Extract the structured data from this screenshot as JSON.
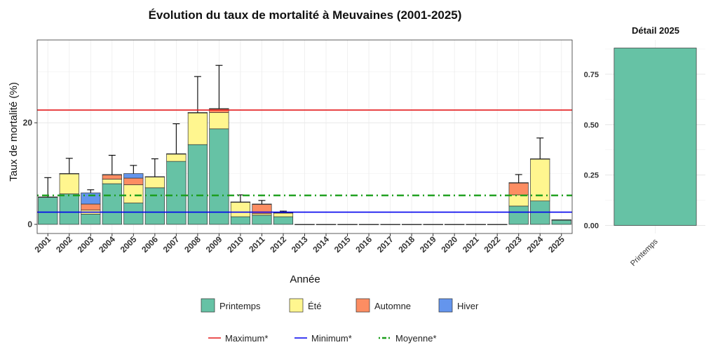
{
  "chart_data": [
    {
      "type": "bar",
      "stacked": true,
      "title": "Évolution du taux de mortalité à Meuvaines (2001-2025)",
      "xlabel": "Année",
      "ylabel": "Taux de mortalité (%)",
      "ylim": [
        -1.8,
        36.3
      ],
      "yticks": [
        0,
        20
      ],
      "grid": true,
      "categories": [
        "2001",
        "2002",
        "2003",
        "2004",
        "2005",
        "2006",
        "2007",
        "2008",
        "2009",
        "2010",
        "2011",
        "2012",
        "2013",
        "2014",
        "2015",
        "2016",
        "2017",
        "2018",
        "2019",
        "2020",
        "2021",
        "2022",
        "2023",
        "2024",
        "2025"
      ],
      "series": [
        {
          "name": "Printemps",
          "color": "#66C2A5",
          "values": [
            5.4,
            6.0,
            2.0,
            8.0,
            4.2,
            7.2,
            12.4,
            15.7,
            18.8,
            1.5,
            1.8,
            1.5,
            0,
            0,
            0,
            0,
            0,
            0,
            0,
            0,
            0,
            0,
            3.6,
            4.6,
            0.9
          ]
        },
        {
          "name": "Été",
          "color": "#FFF68F",
          "values": [
            0,
            4.0,
            0.8,
            0.9,
            3.6,
            2.2,
            1.5,
            6.3,
            3.2,
            2.9,
            0.3,
            0.8,
            0,
            0,
            0,
            0,
            0,
            0,
            0,
            0,
            0,
            0,
            2.2,
            8.3,
            0
          ]
        },
        {
          "name": "Automne",
          "color": "#FC8D62",
          "values": [
            0,
            0,
            1.2,
            0.9,
            1.3,
            0,
            0,
            0,
            0.8,
            0,
            1.9,
            0,
            0,
            0,
            0,
            0,
            0,
            0,
            0,
            0,
            0,
            0,
            2.4,
            0,
            0
          ]
        },
        {
          "name": "Hiver",
          "color": "#6495ED",
          "values": [
            0,
            0,
            2.2,
            0,
            0.9,
            0,
            0,
            0,
            0,
            0,
            0,
            0,
            0,
            0,
            0,
            0,
            0,
            0,
            0,
            0,
            0,
            0,
            0,
            0,
            0
          ]
        }
      ],
      "error_bars": {
        "color": "#000000",
        "upper": [
          9.2,
          13.0,
          6.8,
          13.6,
          11.6,
          12.9,
          19.8,
          29.1,
          31.3,
          5.8,
          4.7,
          2.6,
          0,
          0,
          0,
          0,
          0,
          0,
          0,
          0,
          0,
          0,
          9.8,
          17.0,
          0.95
        ]
      },
      "reference_lines": [
        {
          "name": "Maximum*",
          "value": 22.5,
          "color": "#E41A1C",
          "style": "solid"
        },
        {
          "name": "Minimum*",
          "value": 2.4,
          "color": "#0000EE",
          "style": "solid"
        },
        {
          "name": "Moyenne*",
          "value": 5.7,
          "color": "#1A9E1A",
          "style": "dotdash"
        }
      ]
    },
    {
      "type": "bar",
      "title": "Détail 2025",
      "categories": [
        "Printemps"
      ],
      "values": [
        0.88
      ],
      "color": "#66C2A5",
      "ylim": [
        -0.04,
        0.92
      ],
      "yticks": [
        0.0,
        0.25,
        0.5,
        0.75
      ],
      "grid": true
    }
  ],
  "legend": {
    "placement": "bottom",
    "fill_items": [
      {
        "label": "Printemps",
        "color": "#66C2A5"
      },
      {
        "label": "Été",
        "color": "#FFF68F"
      },
      {
        "label": "Automne",
        "color": "#FC8D62"
      },
      {
        "label": "Hiver",
        "color": "#6495ED"
      }
    ],
    "line_items": [
      {
        "label": "Maximum*",
        "color": "#E41A1C",
        "style": "solid"
      },
      {
        "label": "Minimum*",
        "color": "#0000EE",
        "style": "solid"
      },
      {
        "label": "Moyenne*",
        "color": "#1A9E1A",
        "style": "dotdash"
      }
    ]
  }
}
